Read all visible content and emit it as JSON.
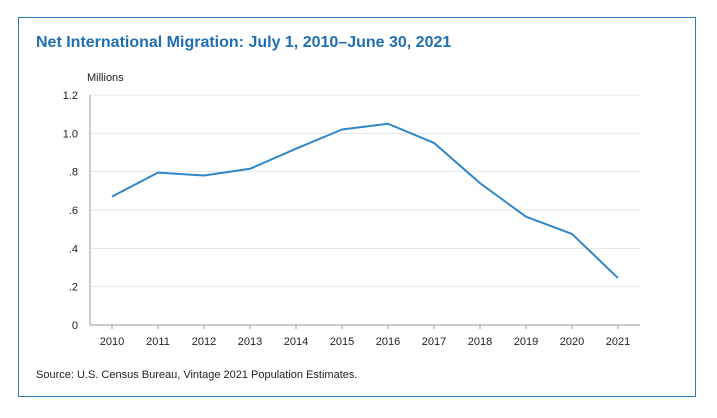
{
  "chart_data": {
    "type": "line",
    "title": "Net International Migration: July 1, 2010–June 30, 2021",
    "ylabel": "Millions",
    "source": "Source: U.S. Census Bureau, Vintage 2021 Population Estimates.",
    "x": [
      "2010",
      "2011",
      "2012",
      "2013",
      "2014",
      "2015",
      "2016",
      "2017",
      "2018",
      "2019",
      "2020",
      "2021"
    ],
    "values": [
      0.67,
      0.795,
      0.78,
      0.815,
      0.92,
      1.02,
      1.05,
      0.95,
      0.74,
      0.565,
      0.475,
      0.245
    ],
    "ylim": [
      0,
      1.2
    ],
    "yticks": [
      {
        "value": 0,
        "label": "0"
      },
      {
        "value": 0.2,
        "label": ".2"
      },
      {
        "value": 0.4,
        "label": ".4"
      },
      {
        "value": 0.6,
        "label": ".6"
      },
      {
        "value": 0.8,
        "label": ".8"
      },
      {
        "value": 1.0,
        "label": "1.0"
      },
      {
        "value": 1.2,
        "label": "1.2"
      }
    ],
    "grid": true,
    "line_color": "#2f86c9",
    "title_color": "#1f6fb2",
    "border_color": "#2d77b8"
  }
}
